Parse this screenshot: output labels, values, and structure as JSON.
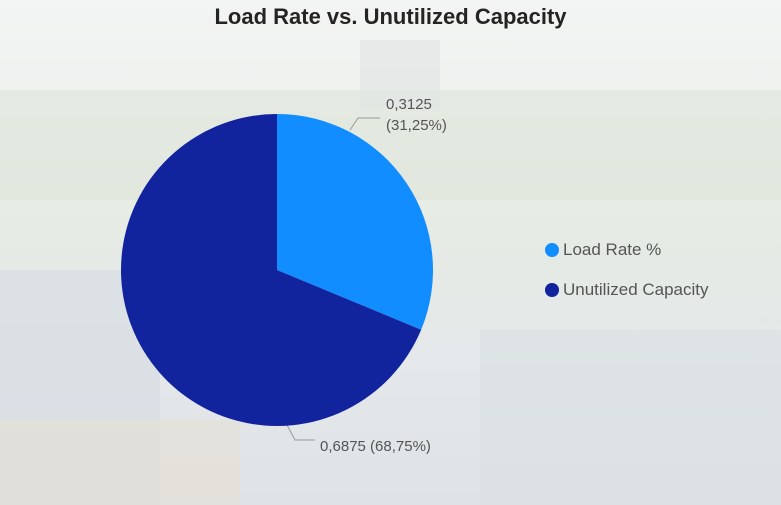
{
  "chart_data": {
    "type": "pie",
    "title": "Load Rate vs. Unutilized Capacity",
    "categories": [
      "Load Rate %",
      "Unutilized Capacity"
    ],
    "values": [
      0.3125,
      0.6875
    ],
    "value_labels": [
      "0,3125 (31,25%)",
      "0,6875 (68,75%)"
    ],
    "colors": [
      "#118dff",
      "#12239e"
    ],
    "legend": "right"
  }
}
